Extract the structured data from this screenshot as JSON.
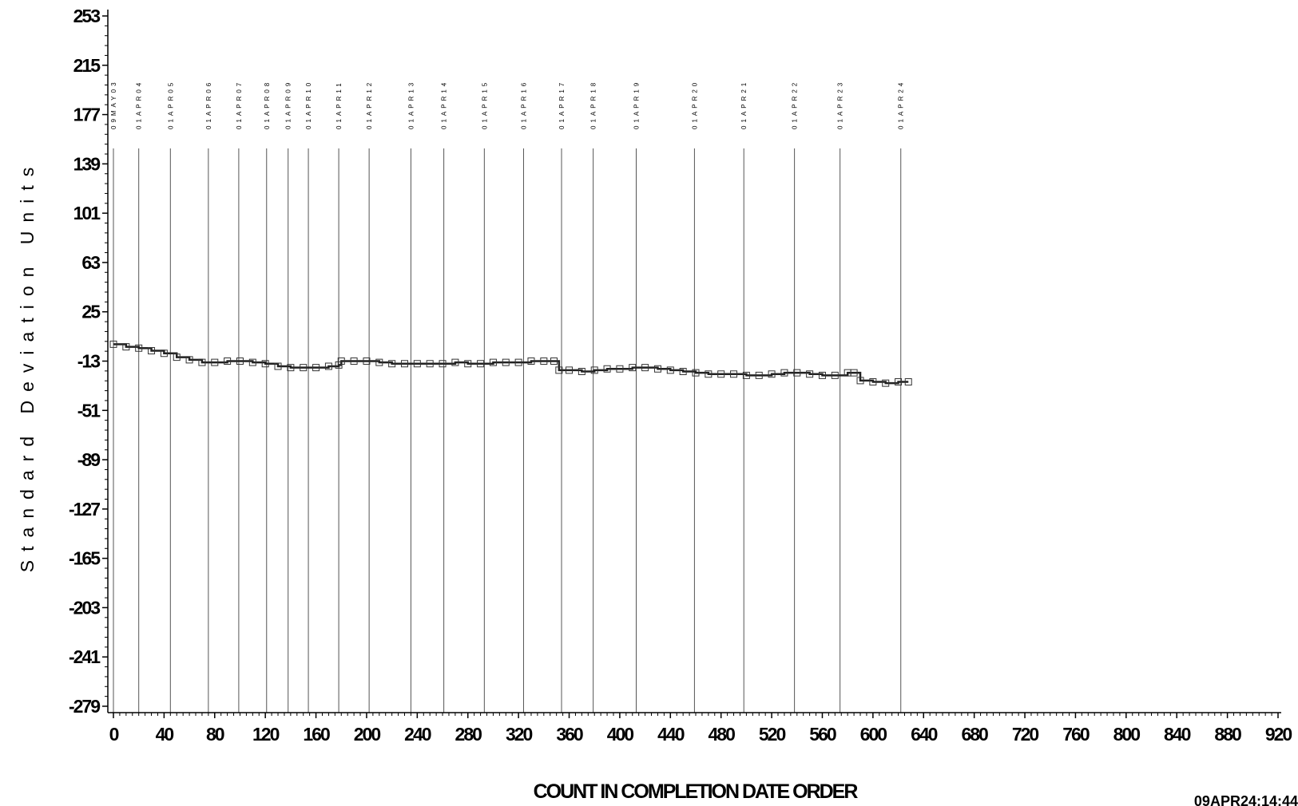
{
  "chart_data": {
    "type": "line",
    "title": "",
    "xlabel": "COUNT IN COMPLETION DATE ORDER",
    "ylabel": "Standard Deviation Units",
    "timestamp": "09APR24:14:44",
    "xlim": [
      0,
      920
    ],
    "ylim": [
      -279,
      253
    ],
    "x_ticks": [
      0,
      40,
      80,
      120,
      160,
      200,
      240,
      280,
      320,
      360,
      400,
      440,
      480,
      520,
      560,
      600,
      640,
      680,
      720,
      760,
      800,
      840,
      880,
      920
    ],
    "x_tick_labels": [
      "0",
      "40",
      "80",
      "120",
      "160",
      "200",
      "240",
      "280",
      "320",
      "360",
      "400",
      "440",
      "480",
      "520",
      "560",
      "600",
      "640",
      "680",
      "720",
      "760",
      "800",
      "840",
      "880",
      "920"
    ],
    "y_ticks": [
      253,
      215,
      177,
      139,
      101,
      63,
      25,
      -13,
      -51,
      -89,
      -127,
      -165,
      -203,
      -241,
      -279
    ],
    "y_tick_labels": [
      "253",
      "215",
      "177",
      "139",
      "101",
      "63",
      "25",
      "-13",
      "-51",
      "-89",
      "-127",
      "-165",
      "-203",
      "-241",
      "-279"
    ],
    "reference_lines": [
      {
        "x": 0,
        "label": "09MAY03"
      },
      {
        "x": 20,
        "label": "01APR04"
      },
      {
        "x": 45,
        "label": "01APR05"
      },
      {
        "x": 75,
        "label": "01APR06"
      },
      {
        "x": 99,
        "label": "01APR07"
      },
      {
        "x": 121,
        "label": "01APR08"
      },
      {
        "x": 138,
        "label": "01APR09"
      },
      {
        "x": 154,
        "label": "01APR10"
      },
      {
        "x": 178,
        "label": "01APR11"
      },
      {
        "x": 202,
        "label": "01APR12"
      },
      {
        "x": 235,
        "label": "01APR13"
      },
      {
        "x": 261,
        "label": "01APR14"
      },
      {
        "x": 293,
        "label": "01APR15"
      },
      {
        "x": 324,
        "label": "01APR16"
      },
      {
        "x": 354,
        "label": "01APR17"
      },
      {
        "x": 379,
        "label": "01APR18"
      },
      {
        "x": 413,
        "label": "01APR19"
      },
      {
        "x": 459,
        "label": "01APR20"
      },
      {
        "x": 498,
        "label": "01APR21"
      },
      {
        "x": 538,
        "label": "01APR22"
      },
      {
        "x": 574,
        "label": "01APR23"
      },
      {
        "x": 622,
        "label": "01APR24"
      }
    ],
    "series": [
      {
        "marker": "square",
        "x": [
          0,
          10,
          20,
          30,
          40,
          50,
          60,
          70,
          80,
          90,
          100,
          110,
          120,
          130,
          140,
          150,
          160,
          170,
          178,
          180,
          190,
          200,
          210,
          220,
          230,
          240,
          250,
          260,
          270,
          280,
          290,
          300,
          310,
          320,
          330,
          340,
          348,
          352,
          360,
          370,
          380,
          390,
          400,
          410,
          420,
          430,
          440,
          450,
          460,
          470,
          480,
          490,
          500,
          510,
          520,
          530,
          540,
          550,
          560,
          570,
          580,
          585,
          590,
          600,
          610,
          620,
          628
        ],
        "y": [
          0,
          -2,
          -3,
          -5,
          -7,
          -10,
          -12,
          -14,
          -14,
          -13,
          -13,
          -14,
          -15,
          -17,
          -18,
          -18,
          -18,
          -17,
          -16,
          -13,
          -13,
          -13,
          -14,
          -15,
          -15,
          -15,
          -15,
          -15,
          -14,
          -15,
          -15,
          -14,
          -14,
          -14,
          -13,
          -13,
          -13,
          -20,
          -20,
          -21,
          -20,
          -19,
          -19,
          -18,
          -18,
          -19,
          -20,
          -21,
          -22,
          -23,
          -23,
          -23,
          -24,
          -24,
          -23,
          -22,
          -22,
          -23,
          -24,
          -24,
          -22,
          -22,
          -28,
          -29,
          -30,
          -29,
          -29
        ]
      }
    ],
    "grid": false,
    "legend": "none"
  }
}
